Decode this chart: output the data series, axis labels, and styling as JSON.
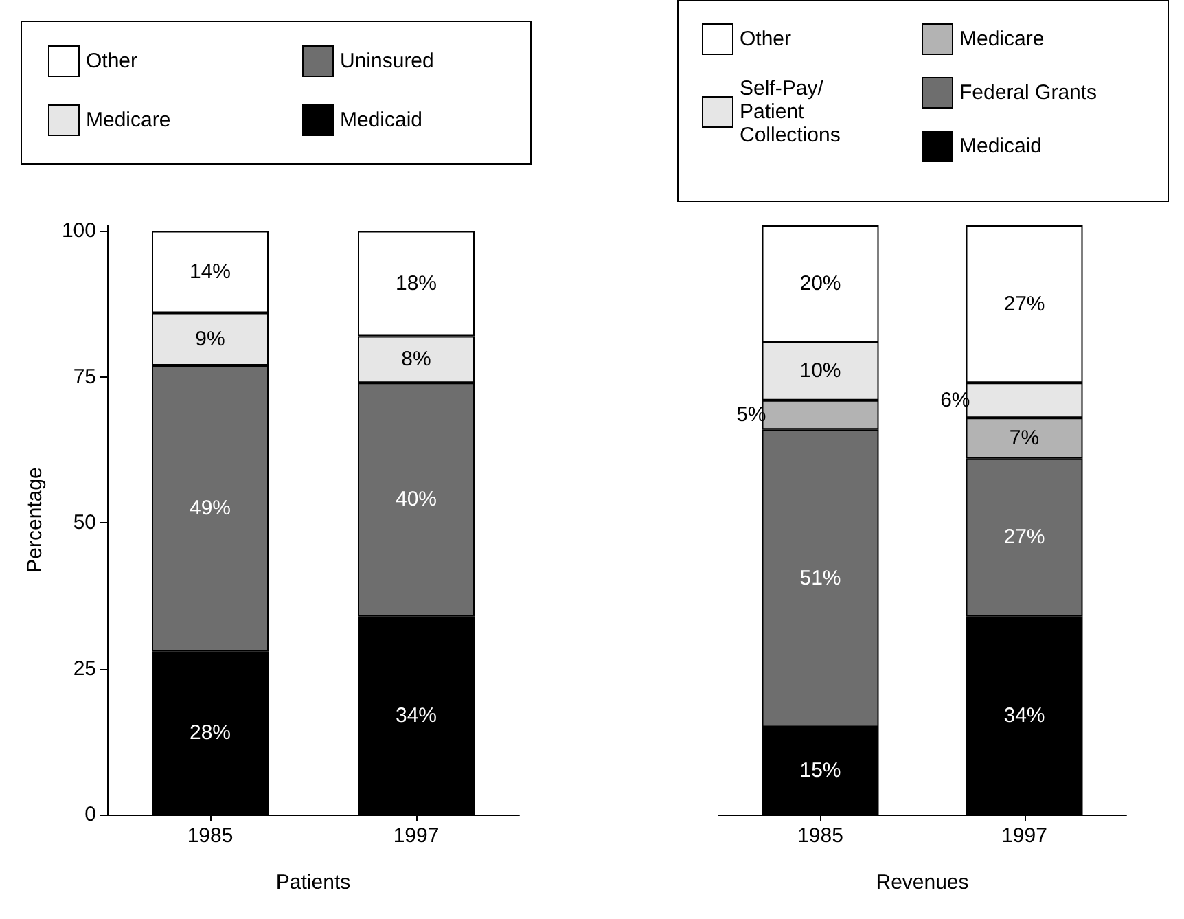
{
  "chart_data": [
    {
      "type": "bar",
      "stacked": true,
      "xlabel": "Patients",
      "ylabel": "Percentage",
      "categories": [
        "1985",
        "1997"
      ],
      "ylim": [
        0,
        101
      ],
      "yticks": [
        0,
        25,
        50,
        75,
        100
      ],
      "grid": false,
      "legend": "top",
      "series": [
        {
          "name": "Medicaid",
          "color": "#000000",
          "values": [
            28,
            34
          ],
          "value_labels": [
            "28%",
            "34%"
          ]
        },
        {
          "name": "Uninsured",
          "color": "#6e6e6e",
          "values": [
            49,
            40
          ],
          "value_labels": [
            "49%",
            "40%"
          ]
        },
        {
          "name": "Medicare",
          "color": "#e6e6e6",
          "values": [
            9,
            8
          ],
          "value_labels": [
            "9%",
            "8%"
          ]
        },
        {
          "name": "Other",
          "color": "#ffffff",
          "values": [
            14,
            18
          ],
          "value_labels": [
            "14%",
            "18%"
          ]
        }
      ]
    },
    {
      "type": "bar",
      "stacked": true,
      "xlabel": "Revenues",
      "categories": [
        "1985",
        "1997"
      ],
      "ylim": [
        0,
        101
      ],
      "yticks": [
        0,
        25,
        50,
        75,
        100
      ],
      "tick_labels": "x",
      "grid": false,
      "legend": "top",
      "series": [
        {
          "name": "Medicaid",
          "color": "#000000",
          "values": [
            15,
            34
          ],
          "value_labels": [
            "15%",
            "34%"
          ]
        },
        {
          "name": "Federal Grants",
          "color": "#6e6e6e",
          "values": [
            51,
            27
          ],
          "value_labels": [
            "51%",
            "27%"
          ]
        },
        {
          "name": "Medicare",
          "color": "#b3b3b3",
          "values": [
            5,
            7
          ],
          "value_labels": [
            "5%",
            "7%"
          ]
        },
        {
          "name": "Self-Pay/\nPatient\nCollections",
          "color": "#e6e6e6",
          "values": [
            10,
            6
          ],
          "value_labels": [
            "10%",
            "6%"
          ]
        },
        {
          "name": "Other",
          "color": "#ffffff",
          "values": [
            20,
            27
          ],
          "value_labels": [
            "20%",
            "27%"
          ]
        }
      ]
    }
  ]
}
